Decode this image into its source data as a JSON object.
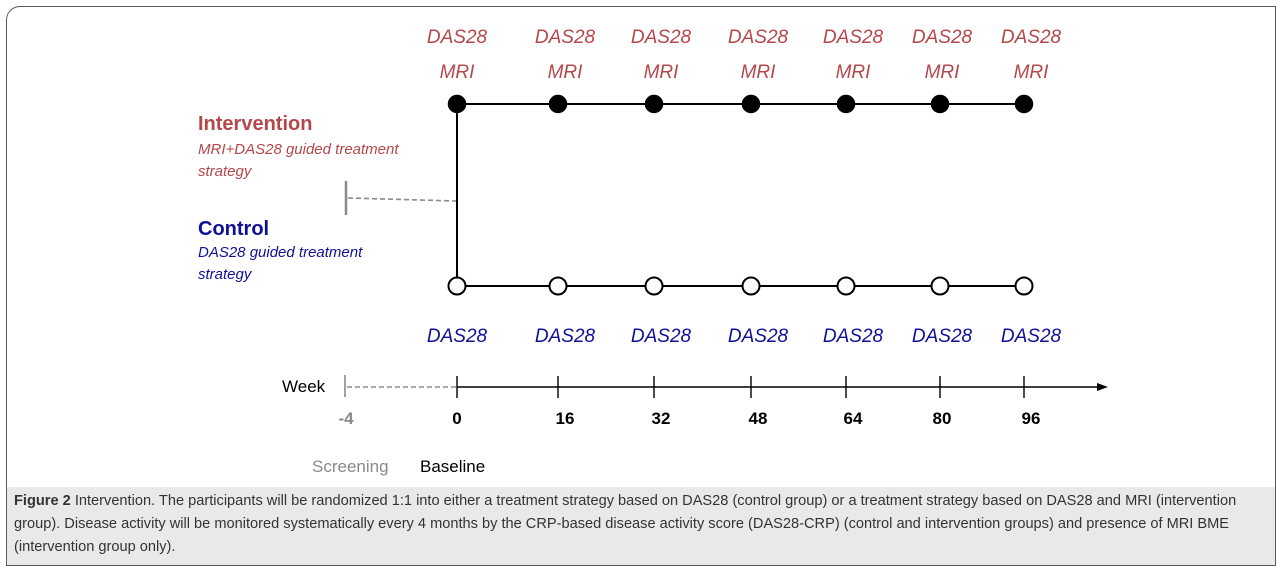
{
  "colors": {
    "intervention": "#b5474b",
    "control": "#101096",
    "axis": "#000000",
    "muted": "#8a8a8a",
    "caption_bg": "#e9e9e9"
  },
  "diagram": {
    "intervention": {
      "title": "Intervention",
      "subtitle_line1": "MRI+DAS28 guided treatment",
      "subtitle_line2": "strategy",
      "label_top": "DAS28",
      "label_bottom": "MRI"
    },
    "control": {
      "title": "Control",
      "subtitle_line1": "DAS28 guided treatment",
      "subtitle_line2": "strategy",
      "label": "DAS28"
    },
    "axis": {
      "label": "Week",
      "ticks": [
        "-4",
        "0",
        "16",
        "32",
        "48",
        "64",
        "80",
        "96"
      ],
      "screening": "Screening",
      "baseline": "Baseline"
    }
  },
  "caption": {
    "label": "Figure 2",
    "text": " Intervention. The participants will be randomized 1:1 into either a treatment strategy based on DAS28 (control group) or a treatment strategy based on DAS28 and MRI (intervention group). Disease activity will be monitored systematically every 4 months by the CRP-based disease activity score (DAS28-CRP) (control and intervention groups) and presence of MRI BME (intervention group only)."
  }
}
